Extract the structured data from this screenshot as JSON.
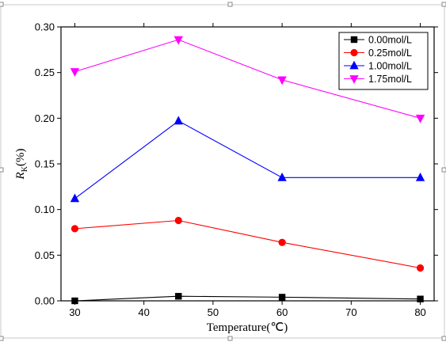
{
  "chart_data": {
    "type": "line",
    "title": "",
    "xlabel": "Temperature(℃)",
    "ylabel": "Rk(%)",
    "ylabel_main": "R",
    "ylabel_sub": "K",
    "ylabel_unit": "(%)",
    "xlim": [
      28,
      82
    ],
    "ylim": [
      0,
      0.3
    ],
    "xticks": [
      30,
      40,
      50,
      60,
      70,
      80
    ],
    "yticks": [
      "0.00",
      "0.05",
      "0.10",
      "0.15",
      "0.20",
      "0.25",
      "0.30"
    ],
    "grid": false,
    "legend_position": "top-right",
    "x": [
      30,
      45,
      60,
      80
    ],
    "series": [
      {
        "name": "0.00mol/L",
        "values": [
          0.0,
          0.005,
          0.004,
          0.002
        ],
        "color": "#000000",
        "marker": "square"
      },
      {
        "name": "0.25mol/L",
        "values": [
          0.079,
          0.088,
          0.064,
          0.036
        ],
        "color": "#ff0000",
        "marker": "circle"
      },
      {
        "name": "1.00mol/L",
        "values": [
          0.112,
          0.197,
          0.135,
          0.135
        ],
        "color": "#0000ff",
        "marker": "triangle-up"
      },
      {
        "name": "1.75mol/L",
        "values": [
          0.251,
          0.286,
          0.242,
          0.2
        ],
        "color": "#ff00ff",
        "marker": "triangle-down"
      }
    ]
  }
}
